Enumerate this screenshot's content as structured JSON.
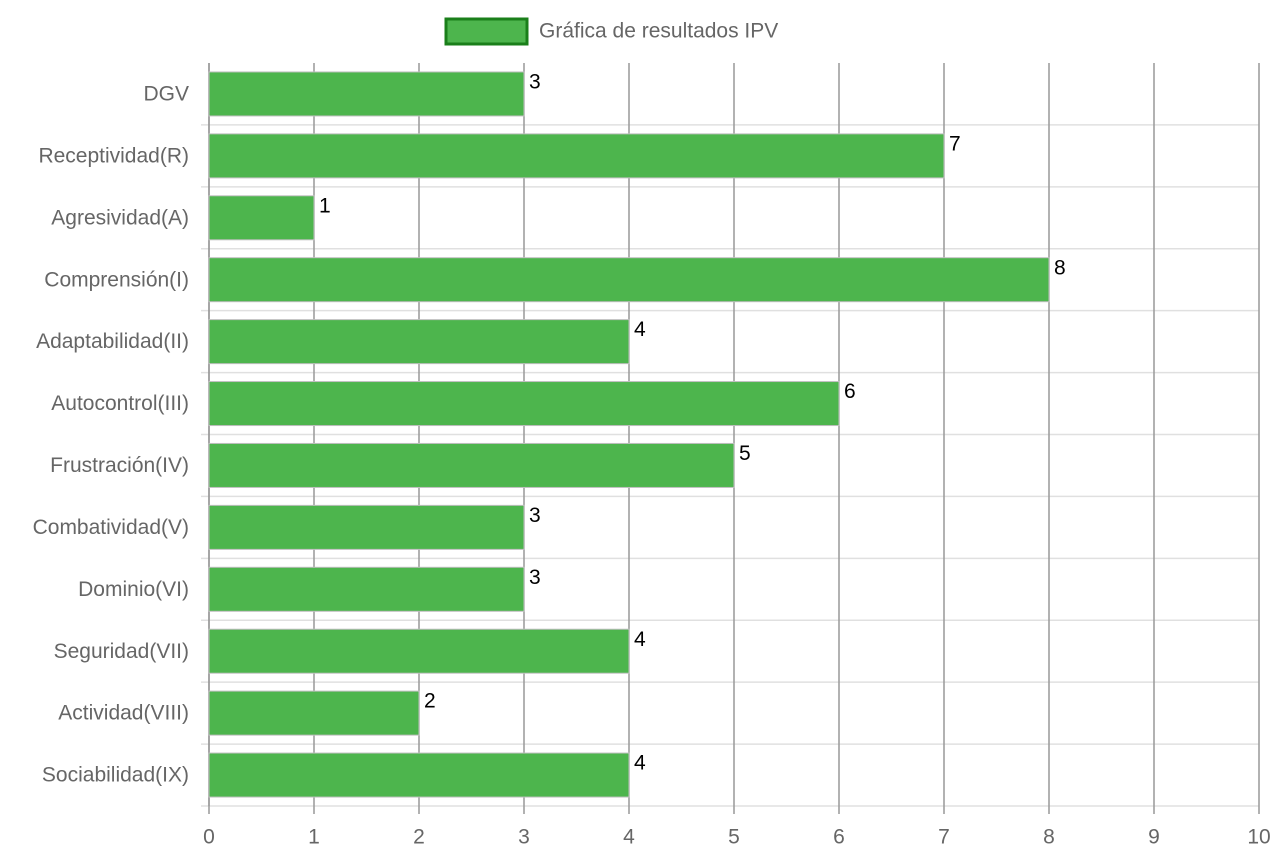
{
  "chart_data": {
    "type": "bar",
    "orientation": "horizontal",
    "categories": [
      "DGV",
      "Receptividad(R)",
      "Agresividad(A)",
      "Comprensión(I)",
      "Adaptabilidad(II)",
      "Autocontrol(III)",
      "Frustración(IV)",
      "Combatividad(V)",
      "Dominio(VI)",
      "Seguridad(VII)",
      "Actividad(VIII)",
      "Sociabilidad(IX)"
    ],
    "series": [
      {
        "name": "Gráfica de resultados IPV",
        "color": "#4db54d",
        "border_color": "#1a7f1a",
        "values": [
          3,
          7,
          1,
          8,
          4,
          6,
          5,
          3,
          3,
          4,
          2,
          4
        ]
      }
    ],
    "xlim": [
      0,
      10
    ],
    "xticks": [
      0,
      1,
      2,
      3,
      4,
      5,
      6,
      7,
      8,
      9,
      10
    ],
    "grid": true,
    "legend": "top",
    "data_labels": true
  }
}
